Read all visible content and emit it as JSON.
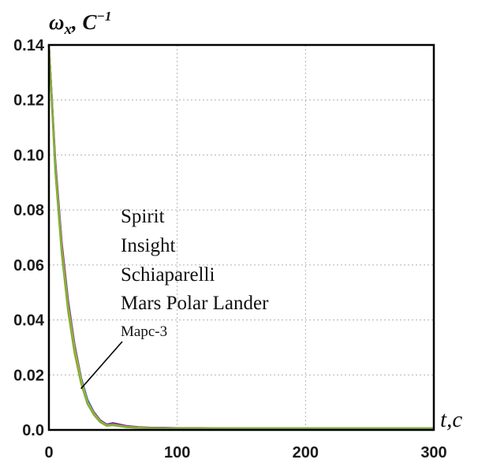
{
  "chart_data": {
    "type": "line",
    "title": "",
    "xlabel": "t, c",
    "ylabel": "ω_x, C^-1",
    "ylabel_parts": {
      "symbol": "ω",
      "subscript": "x",
      "sep": ", ",
      "unit": "C",
      "exponent": "−1"
    },
    "xlabel_parts": {
      "symbol": "t",
      "sep": ",",
      "unit": "c"
    },
    "xlim": [
      0,
      300
    ],
    "ylim": [
      0,
      0.14
    ],
    "xticks": [
      0,
      100,
      200,
      300
    ],
    "xtick_labels": [
      "0",
      "100",
      "200",
      "300"
    ],
    "yticks": [
      0,
      0.02,
      0.04,
      0.06,
      0.08,
      0.1,
      0.12,
      0.14
    ],
    "ytick_labels": [
      "0.0",
      "0.02",
      "0.04",
      "0.06",
      "0.08",
      "0.10",
      "0.12",
      "0.14"
    ],
    "grid": true,
    "x": [
      0,
      5,
      10,
      15,
      20,
      25,
      30,
      35,
      40,
      45,
      50,
      60,
      70,
      80,
      90,
      100,
      120,
      140,
      160,
      180,
      200,
      220,
      240,
      260,
      280,
      300
    ],
    "series": [
      {
        "name": "Spirit",
        "color": "#7a2fa0",
        "values": [
          0.14,
          0.098,
          0.068,
          0.047,
          0.031,
          0.019,
          0.011,
          0.0065,
          0.0035,
          0.002,
          0.0025,
          0.0015,
          0.001,
          0.0008,
          0.0008,
          0.0007,
          0.0007,
          0.0006,
          0.0006,
          0.0006,
          0.0006,
          0.0006,
          0.0006,
          0.0006,
          0.0006,
          0.0006
        ]
      },
      {
        "name": "Insight",
        "color": "#2a6fb8",
        "values": [
          0.14,
          0.097,
          0.067,
          0.046,
          0.031,
          0.019,
          0.011,
          0.0063,
          0.0033,
          0.0018,
          0.002,
          0.0013,
          0.0009,
          0.0007,
          0.0007,
          0.0006,
          0.0006,
          0.0006,
          0.0006,
          0.0006,
          0.0006,
          0.0006,
          0.0006,
          0.0006,
          0.0006,
          0.0006
        ]
      },
      {
        "name": "Schiaparelli",
        "color": "#d9641c",
        "values": [
          0.14,
          0.096,
          0.066,
          0.045,
          0.03,
          0.018,
          0.01,
          0.006,
          0.0031,
          0.0017,
          0.0019,
          0.0012,
          0.0008,
          0.0007,
          0.0006,
          0.0006,
          0.0006,
          0.0006,
          0.0006,
          0.0006,
          0.0006,
          0.0006,
          0.0006,
          0.0006,
          0.0006,
          0.0006
        ]
      },
      {
        "name": "Mars Polar Lander",
        "color": "#e8c21c",
        "values": [
          0.14,
          0.095,
          0.065,
          0.044,
          0.029,
          0.018,
          0.01,
          0.0058,
          0.003,
          0.0016,
          0.0018,
          0.0011,
          0.0008,
          0.0006,
          0.0006,
          0.0006,
          0.0006,
          0.0006,
          0.0006,
          0.0006,
          0.0006,
          0.0006,
          0.0006,
          0.0006,
          0.0006,
          0.0006
        ]
      },
      {
        "name": "Марс-3",
        "color": "#7fae3c",
        "values": [
          0.14,
          0.094,
          0.064,
          0.043,
          0.028,
          0.017,
          0.0095,
          0.0055,
          0.0028,
          0.0015,
          0.0017,
          0.001,
          0.0007,
          0.0006,
          0.0006,
          0.0006,
          0.0006,
          0.0006,
          0.0006,
          0.0006,
          0.0006,
          0.0006,
          0.0006,
          0.0006,
          0.0006,
          0.0006
        ]
      }
    ],
    "annotation": {
      "target_x": 25,
      "target_y": 0.015,
      "label_series": "Марс-3"
    },
    "legend": "inline text labels, center-left"
  }
}
